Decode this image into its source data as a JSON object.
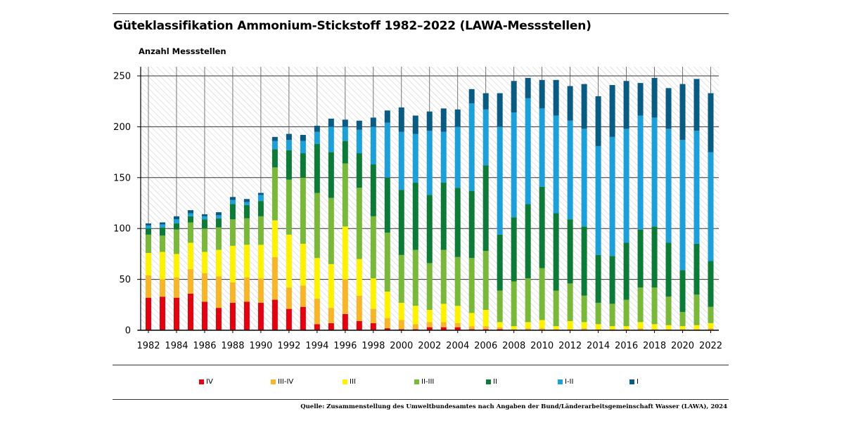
{
  "page": {
    "title": "Güteklassifikation Ammonium-Stickstoff 1982–2022 (LAWA-Messstellen)",
    "source": "Quelle: Zusammenstellung des Umweltbundesamtes nach Angaben der Bund/Länderarbeitsgemeinschaft Wasser (LAWA), 2024"
  },
  "chart_data": {
    "type": "bar",
    "stacked": true,
    "title": "Güteklassifikation Ammonium-Stickstoff 1982–2022 (LAWA-Messstellen)",
    "ylabel": "Anzahl Messstellen",
    "xlabel": "",
    "ylim": [
      0,
      250
    ],
    "yticks": [
      0,
      50,
      100,
      150,
      200,
      250
    ],
    "grid": true,
    "legend_position": "bottom",
    "x_tick_labels": [
      "1982",
      "1984",
      "1986",
      "1988",
      "1990",
      "1992",
      "1994",
      "1996",
      "1998",
      "2000",
      "2002",
      "2004",
      "2006",
      "2008",
      "2010",
      "2012",
      "2014",
      "2016",
      "2018",
      "2020",
      "2022"
    ],
    "categories": [
      "1982",
      "1983",
      "1984",
      "1985",
      "1986",
      "1987",
      "1988",
      "1989",
      "1990",
      "1991",
      "1992",
      "1993",
      "1994",
      "1995",
      "1996",
      "1997",
      "1998",
      "1999",
      "2000",
      "2001",
      "2002",
      "2003",
      "2004",
      "2005",
      "2006",
      "2007",
      "2008",
      "2009",
      "2010",
      "2011",
      "2012",
      "2013",
      "2014",
      "2015",
      "2016",
      "2017",
      "2018",
      "2019",
      "2020",
      "2021",
      "2022"
    ],
    "series": [
      {
        "name": "IV",
        "color": "#e3000f",
        "values": [
          32,
          33,
          32,
          36,
          28,
          22,
          27,
          28,
          27,
          30,
          21,
          23,
          6,
          7,
          16,
          9,
          7,
          2,
          1,
          1,
          3,
          3,
          3,
          1,
          1,
          1,
          0,
          0,
          0,
          0,
          0,
          0,
          0,
          0,
          0,
          0,
          0,
          0,
          0,
          0,
          0
        ]
      },
      {
        "name": "III-IV",
        "color": "#f7b52a",
        "values": [
          22,
          17,
          20,
          24,
          28,
          31,
          20,
          24,
          24,
          42,
          21,
          21,
          25,
          15,
          34,
          25,
          14,
          10,
          9,
          5,
          5,
          5,
          4,
          3,
          3,
          2,
          1,
          2,
          2,
          1,
          1,
          2,
          1,
          1,
          1,
          2,
          1,
          1,
          1,
          1,
          2
        ]
      },
      {
        "name": "III",
        "color": "#fff200",
        "values": [
          22,
          27,
          23,
          26,
          21,
          26,
          36,
          32,
          33,
          36,
          52,
          41,
          40,
          43,
          52,
          36,
          30,
          26,
          17,
          18,
          12,
          18,
          17,
          13,
          16,
          5,
          3,
          6,
          8,
          3,
          8,
          6,
          5,
          3,
          3,
          6,
          5,
          4,
          3,
          4,
          5
        ]
      },
      {
        "name": "II-III",
        "color": "#79b83a",
        "values": [
          18,
          16,
          24,
          20,
          23,
          22,
          26,
          26,
          28,
          52,
          54,
          65,
          64,
          65,
          62,
          70,
          61,
          58,
          47,
          55,
          46,
          53,
          48,
          54,
          58,
          31,
          44,
          43,
          51,
          35,
          37,
          26,
          21,
          22,
          26,
          34,
          36,
          28,
          14,
          30,
          16
        ]
      },
      {
        "name": "II",
        "color": "#0e7a37",
        "values": [
          6,
          8,
          6,
          6,
          9,
          9,
          15,
          13,
          15,
          18,
          29,
          24,
          48,
          45,
          22,
          34,
          51,
          54,
          64,
          66,
          67,
          66,
          68,
          66,
          84,
          55,
          63,
          73,
          80,
          76,
          63,
          68,
          47,
          47,
          56,
          57,
          60,
          53,
          41,
          50,
          45
        ]
      },
      {
        "name": "I-II",
        "color": "#1da0d8",
        "values": [
          3,
          3,
          4,
          3,
          3,
          3,
          4,
          3,
          6,
          8,
          10,
          12,
          12,
          25,
          14,
          23,
          37,
          54,
          57,
          48,
          63,
          50,
          60,
          86,
          55,
          106,
          103,
          104,
          77,
          96,
          97,
          96,
          107,
          117,
          112,
          112,
          107,
          112,
          128,
          111,
          107
        ]
      },
      {
        "name": "I",
        "color": "#0a5b82",
        "values": [
          2,
          2,
          3,
          3,
          2,
          3,
          3,
          3,
          2,
          4,
          6,
          6,
          6,
          8,
          7,
          9,
          9,
          12,
          24,
          18,
          19,
          23,
          17,
          14,
          16,
          33,
          31,
          20,
          28,
          35,
          34,
          44,
          49,
          51,
          47,
          32,
          39,
          40,
          55,
          51,
          58
        ]
      }
    ]
  }
}
